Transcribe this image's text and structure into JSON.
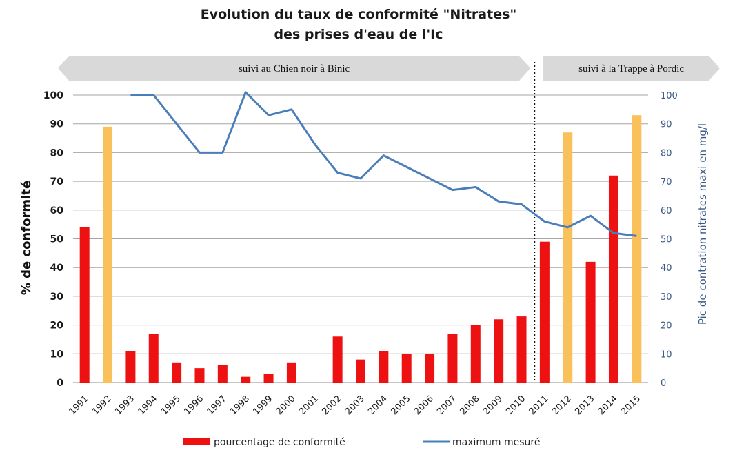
{
  "chart_data": {
    "type": "bar",
    "title_line1": "Evolution du taux de conformité  \"Nitrates\"",
    "title_line2": "des prises d'eau de  l'Ic",
    "ylabel": "%  de  conformité",
    "ylabel_right": "Pic de contration nitrates maxi en mg/l",
    "ylim": [
      0,
      100
    ],
    "ylim_right": [
      0,
      100
    ],
    "yticks": [
      0,
      10,
      20,
      30,
      40,
      50,
      60,
      70,
      80,
      90,
      100
    ],
    "grid": true,
    "categories": [
      "1991",
      "1992",
      "1993",
      "1994",
      "1995",
      "1996",
      "1997",
      "1998",
      "1999",
      "2000",
      "2001",
      "2002",
      "2003",
      "2004",
      "2005",
      "2006",
      "2007",
      "2008",
      "2009",
      "2010",
      "2011",
      "2012",
      "2013",
      "2014",
      "2015"
    ],
    "bars": {
      "values": [
        54,
        89,
        11,
        17,
        7,
        5,
        6,
        2,
        3,
        7,
        null,
        16,
        8,
        11,
        10,
        10,
        17,
        20,
        22,
        23,
        49,
        87,
        42,
        72,
        93
      ],
      "colors": [
        "#ee1111",
        "#fac05a",
        "#ee1111",
        "#ee1111",
        "#ee1111",
        "#ee1111",
        "#ee1111",
        "#ee1111",
        "#ee1111",
        "#ee1111",
        "#ee1111",
        "#ee1111",
        "#ee1111",
        "#ee1111",
        "#ee1111",
        "#ee1111",
        "#ee1111",
        "#ee1111",
        "#ee1111",
        "#ee1111",
        "#ee1111",
        "#fac05a",
        "#ee1111",
        "#ee1111",
        "#fac05a"
      ]
    },
    "series": [
      {
        "name": "pourcentage de conformité",
        "color": "#ee1111"
      },
      {
        "name": "maximum mesuré",
        "type": "line",
        "axis": "right",
        "color": "#4a7ebb",
        "values": [
          null,
          null,
          100,
          100,
          90,
          80,
          80,
          101,
          93,
          95,
          83,
          73,
          71,
          79,
          75,
          71,
          67,
          68,
          63,
          62,
          56,
          54,
          58,
          52,
          51
        ]
      }
    ],
    "periods": [
      {
        "label": "suivi au Chien noir à Binic",
        "from": "1991",
        "to": "2010"
      },
      {
        "label": "suivi à la Trappe à Pordic",
        "from": "2011",
        "to": "2015"
      }
    ],
    "divider_after": "2010",
    "legend_position": "bottom",
    "bar_color": "#ee1111",
    "highlight_bar_color": "#fac05a",
    "band_color": "#d9d9d9"
  }
}
